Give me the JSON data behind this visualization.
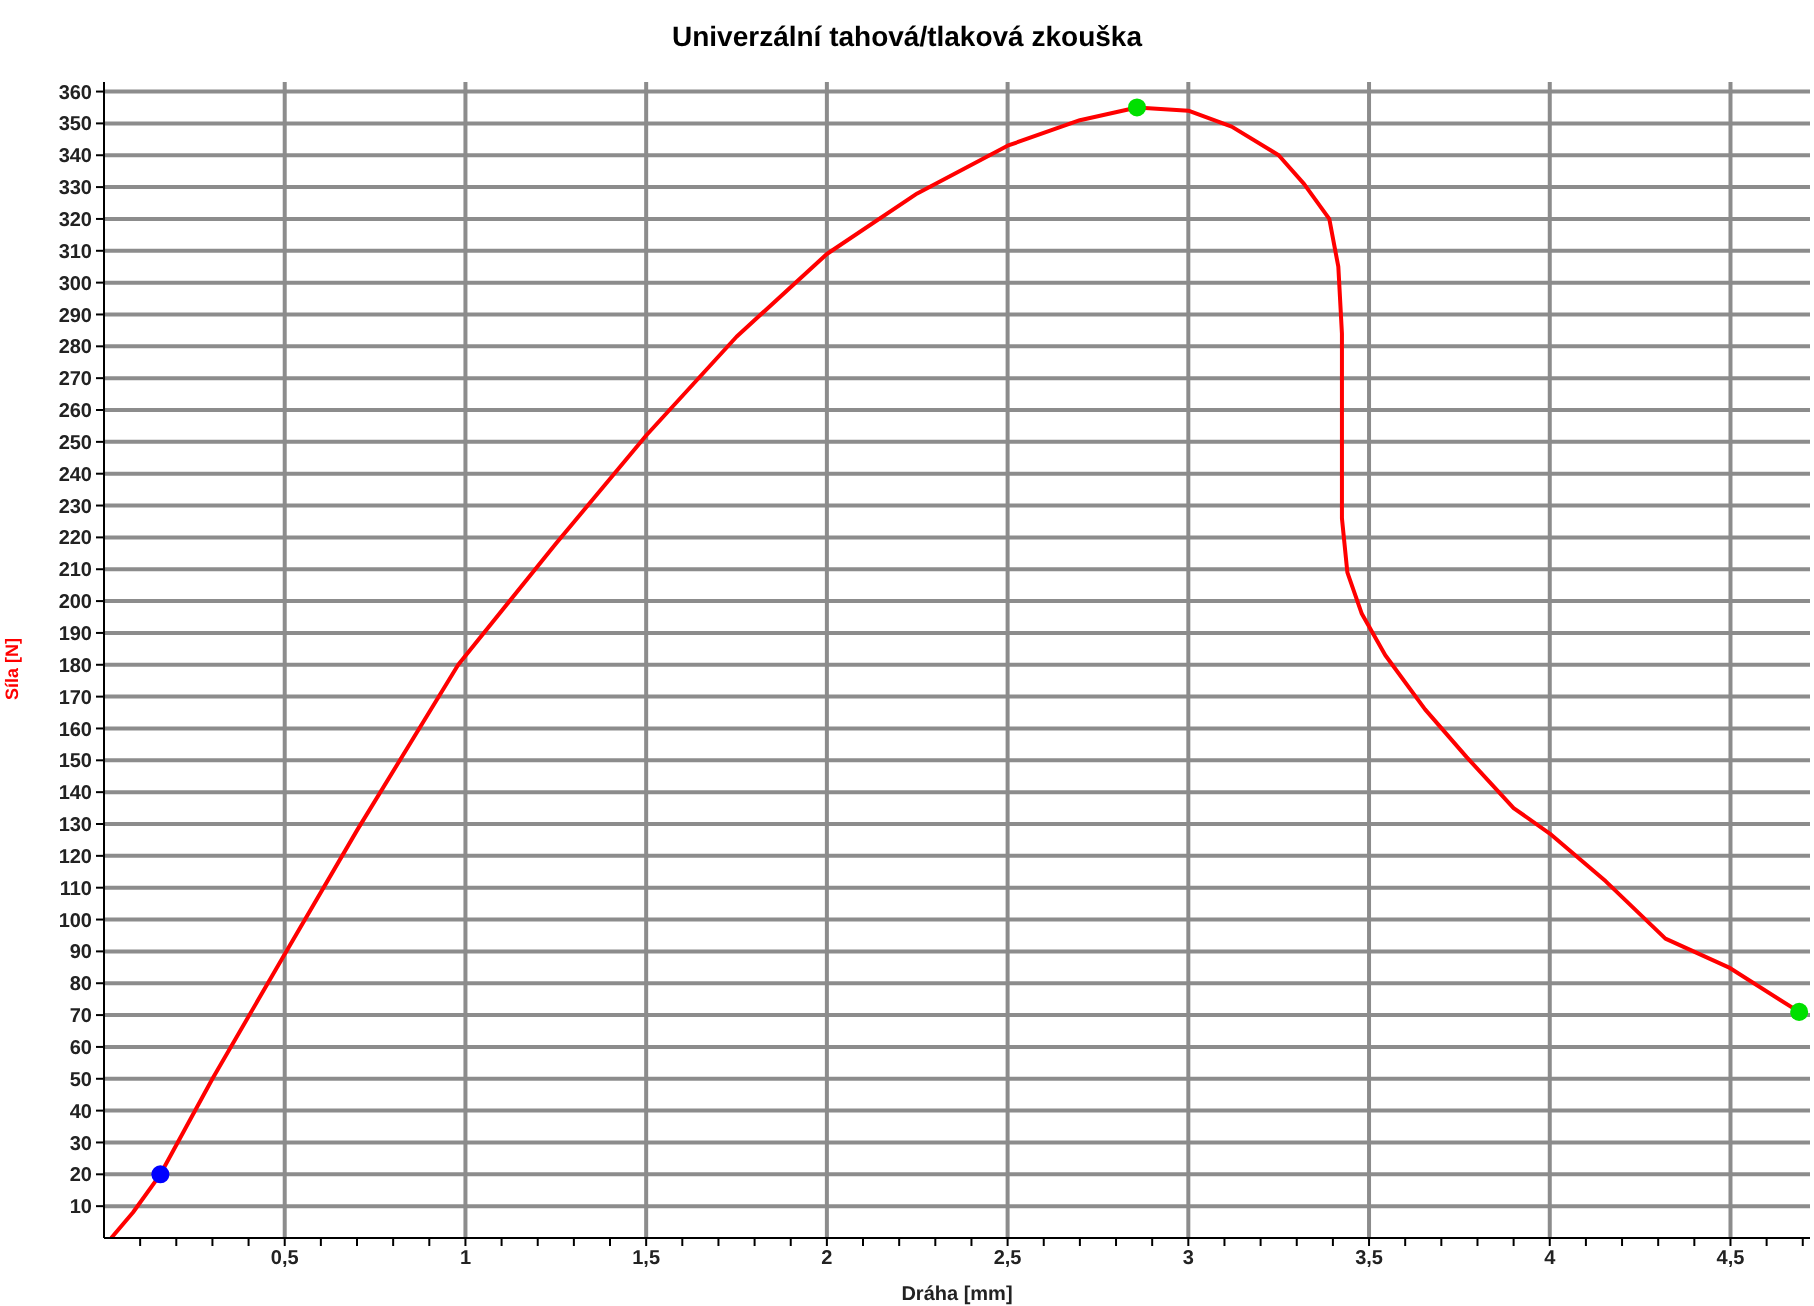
{
  "chart_data": {
    "type": "line",
    "title": "Univerzální tahová/tlaková zkouška",
    "xlabel": "Dráha [mm]",
    "ylabel": "Síla [N]",
    "xlim": [
      0,
      4.72
    ],
    "ylim": [
      0,
      363
    ],
    "xticks": [
      {
        "value": 0.1,
        "label": null
      },
      {
        "value": 0.2,
        "label": null
      },
      {
        "value": 0.3,
        "label": null
      },
      {
        "value": 0.4,
        "label": null
      },
      {
        "value": 0.5,
        "label": "0,5"
      },
      {
        "value": 0.6,
        "label": null
      },
      {
        "value": 0.7,
        "label": null
      },
      {
        "value": 0.8,
        "label": null
      },
      {
        "value": 0.9,
        "label": null
      },
      1,
      {
        "value": 1.1,
        "label": null
      },
      {
        "value": 1.2,
        "label": null
      },
      {
        "value": 1.3,
        "label": null
      },
      {
        "value": 1.4,
        "label": null
      },
      {
        "value": 1.5,
        "label": "1,5"
      },
      {
        "value": 1.6,
        "label": null
      },
      {
        "value": 1.7,
        "label": null
      },
      {
        "value": 1.8,
        "label": null
      },
      {
        "value": 1.9,
        "label": null
      },
      2,
      {
        "value": 2.1,
        "label": null
      },
      {
        "value": 2.2,
        "label": null
      },
      {
        "value": 2.3,
        "label": null
      },
      {
        "value": 2.4,
        "label": null
      },
      {
        "value": 2.5,
        "label": "2,5"
      },
      {
        "value": 2.6,
        "label": null
      },
      {
        "value": 2.7,
        "label": null
      },
      {
        "value": 2.8,
        "label": null
      },
      {
        "value": 2.9,
        "label": null
      },
      3,
      {
        "value": 3.1,
        "label": null
      },
      {
        "value": 3.2,
        "label": null
      },
      {
        "value": 3.3,
        "label": null
      },
      {
        "value": 3.4,
        "label": null
      },
      {
        "value": 3.5,
        "label": "3,5"
      },
      {
        "value": 3.6,
        "label": null
      },
      {
        "value": 3.7,
        "label": null
      },
      {
        "value": 3.8,
        "label": null
      },
      {
        "value": 3.9,
        "label": null
      },
      4,
      {
        "value": 4.1,
        "label": null
      },
      {
        "value": 4.2,
        "label": null
      },
      {
        "value": 4.3,
        "label": null
      },
      {
        "value": 4.4,
        "label": null
      },
      {
        "value": 4.5,
        "label": "4,5"
      },
      {
        "value": 4.6,
        "label": null
      },
      {
        "value": 4.7,
        "label": null
      }
    ],
    "yticks": [
      10,
      20,
      30,
      40,
      50,
      60,
      70,
      80,
      90,
      100,
      110,
      120,
      130,
      140,
      150,
      160,
      170,
      180,
      190,
      200,
      210,
      220,
      230,
      240,
      250,
      260,
      270,
      280,
      290,
      300,
      310,
      320,
      330,
      340,
      350,
      360
    ],
    "grid": true,
    "marker": "none",
    "line_style": "solid",
    "series": [
      {
        "color": "#ff0000",
        "x": [
          0.02,
          0.08,
          0.156,
          0.3,
          0.489,
          0.7,
          0.98,
          1.25,
          1.5,
          1.75,
          2,
          2.25,
          2.5,
          2.7,
          2.858,
          3.0,
          3.12,
          3.25,
          3.32,
          3.39,
          3.415,
          3.425,
          3.425,
          3.44,
          3.48,
          3.545,
          3.655,
          3.77,
          3.9,
          4.0,
          4.155,
          4.32,
          4.495,
          4.69
        ],
        "values": [
          0,
          8,
          20,
          50,
          87,
          128,
          180,
          218,
          252,
          283,
          309,
          328,
          343,
          351,
          355,
          354,
          349,
          340,
          331,
          320,
          305,
          284,
          226,
          209,
          196,
          183,
          166,
          151,
          135,
          127,
          112,
          94,
          85,
          71
        ]
      },
      {
        "type": "scatter",
        "color": "#0000ff",
        "marker": "circle",
        "x": [
          0.156
        ],
        "values": [
          20
        ]
      },
      {
        "type": "scatter",
        "color": "#00e000",
        "marker": "circle",
        "x": [
          2.858,
          4.69
        ],
        "values": [
          355,
          71
        ]
      }
    ]
  }
}
